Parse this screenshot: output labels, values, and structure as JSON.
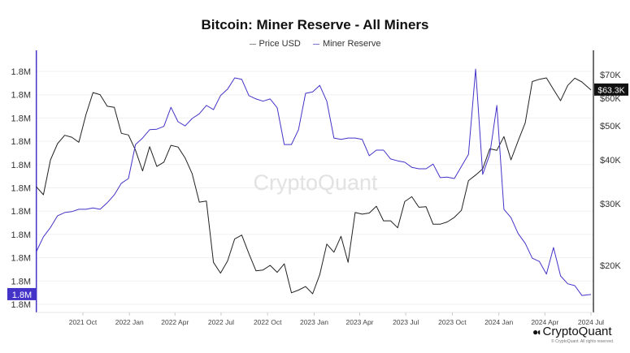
{
  "chart_data": {
    "type": "line",
    "title": "Bitcoin: Miner Reserve - All Miners",
    "legend_position": "top-center",
    "watermark": "CryptoQuant",
    "x_tick_labels": [
      "2021 Oct",
      "2022 Jan",
      "2022 Apr",
      "2022 Jul",
      "2022 Oct",
      "2023 Jan",
      "2023 Apr",
      "2023 Jul",
      "2023 Oct",
      "2024 Jan",
      "2024 Apr",
      "2024 Jul"
    ],
    "xlim": [
      "2021-07-01",
      "2024-07-01"
    ],
    "left_axis": {
      "scale": "linear",
      "tick_labels": [
        "1.8M",
        "1.8M",
        "1.8M",
        "1.8M",
        "1.8M",
        "1.8M",
        "1.8M",
        "1.8M",
        "1.8M",
        "1.8M",
        "1.8M"
      ],
      "ticks": [
        1802500,
        1802000,
        1801500,
        1801000,
        1800500,
        1800000,
        1799500,
        1799000,
        1798500,
        1798000,
        1797500
      ],
      "current_label": "1.8M",
      "color": "#4433c8"
    },
    "right_axis": {
      "scale": "log",
      "tick_labels": [
        "$70K",
        "$60K",
        "$50K",
        "$40K",
        "$30K",
        "$20K"
      ],
      "ticks": [
        70000,
        60000,
        50000,
        40000,
        30000,
        20000
      ],
      "current_label": "$63.3K",
      "color": "#111111"
    },
    "grid": true,
    "x": [
      "2021-07-01",
      "2021-07-15",
      "2021-07-29",
      "2021-08-12",
      "2021-08-26",
      "2021-09-09",
      "2021-09-23",
      "2021-10-07",
      "2021-10-21",
      "2021-11-04",
      "2021-11-18",
      "2021-12-02",
      "2021-12-16",
      "2021-12-30",
      "2022-01-13",
      "2022-01-27",
      "2022-02-10",
      "2022-02-24",
      "2022-03-10",
      "2022-03-24",
      "2022-04-07",
      "2022-04-21",
      "2022-05-05",
      "2022-05-19",
      "2022-06-02",
      "2022-06-16",
      "2022-06-30",
      "2022-07-14",
      "2022-07-28",
      "2022-08-11",
      "2022-08-25",
      "2022-09-08",
      "2022-09-22",
      "2022-10-06",
      "2022-10-20",
      "2022-11-03",
      "2022-11-17",
      "2022-12-01",
      "2022-12-15",
      "2022-12-29",
      "2023-01-12",
      "2023-01-26",
      "2023-02-09",
      "2023-02-23",
      "2023-03-09",
      "2023-03-23",
      "2023-04-06",
      "2023-04-20",
      "2023-05-04",
      "2023-05-18",
      "2023-06-01",
      "2023-06-15",
      "2023-06-29",
      "2023-07-13",
      "2023-07-27",
      "2023-08-10",
      "2023-08-24",
      "2023-09-07",
      "2023-09-21",
      "2023-10-05",
      "2023-10-19",
      "2023-11-02",
      "2023-11-16",
      "2023-11-30",
      "2023-12-14",
      "2023-12-28",
      "2024-01-11",
      "2024-01-25",
      "2024-02-08",
      "2024-02-22",
      "2024-03-07",
      "2024-03-21",
      "2024-04-04",
      "2024-04-18",
      "2024-05-02",
      "2024-05-16",
      "2024-05-30",
      "2024-06-13",
      "2024-07-01"
    ],
    "series": [
      {
        "name": "Price USD",
        "axis": "right",
        "color": "#222222",
        "values": [
          33500,
          31800,
          40000,
          44500,
          47000,
          46400,
          44900,
          53800,
          62200,
          61400,
          56900,
          56500,
          47600,
          47100,
          42600,
          37200,
          43600,
          38300,
          39400,
          44000,
          43500,
          40500,
          36500,
          30300,
          30500,
          20400,
          19000,
          20600,
          23800,
          24400,
          21600,
          19300,
          19400,
          20000,
          19100,
          20200,
          16700,
          17000,
          17400,
          16600,
          18800,
          23000,
          21800,
          24200,
          20400,
          28300,
          28000,
          28200,
          29500,
          26800,
          26800,
          25600,
          30400,
          31400,
          29300,
          29400,
          26200,
          26200,
          26600,
          27400,
          28700,
          34900,
          36200,
          37700,
          43000,
          42600,
          46600,
          40000,
          45300,
          51000,
          66900,
          67900,
          68500,
          63500,
          59000,
          65200,
          68400,
          66700,
          63300
        ]
      },
      {
        "name": "Miner Reserve",
        "axis": "left",
        "color": "#4433c8",
        "values": [
          1798630,
          1798950,
          1799150,
          1799400,
          1799470,
          1799490,
          1799540,
          1799540,
          1799570,
          1799540,
          1799680,
          1799850,
          1800100,
          1800200,
          1800930,
          1801070,
          1801250,
          1801260,
          1801320,
          1801730,
          1801420,
          1801330,
          1801490,
          1801590,
          1801770,
          1801680,
          1801980,
          1802120,
          1802360,
          1802330,
          1801980,
          1801910,
          1801860,
          1801910,
          1801720,
          1800930,
          1800930,
          1801250,
          1802030,
          1802060,
          1802200,
          1801860,
          1801070,
          1801040,
          1801070,
          1801070,
          1801040,
          1800690,
          1800810,
          1800810,
          1800620,
          1800580,
          1800550,
          1800440,
          1800410,
          1800410,
          1800510,
          1800220,
          1800230,
          1800200,
          1800460,
          1800720,
          1802550,
          1800290,
          1800720,
          1801770,
          1799540,
          1799360,
          1799020,
          1798810,
          1798490,
          1798420,
          1798150,
          1798720,
          1798110,
          1797940,
          1797900,
          1797690,
          1797710
        ]
      }
    ]
  },
  "footer": {
    "brand": "CryptoQuant",
    "copyright": "© CryptoQuant. All rights reserved."
  }
}
